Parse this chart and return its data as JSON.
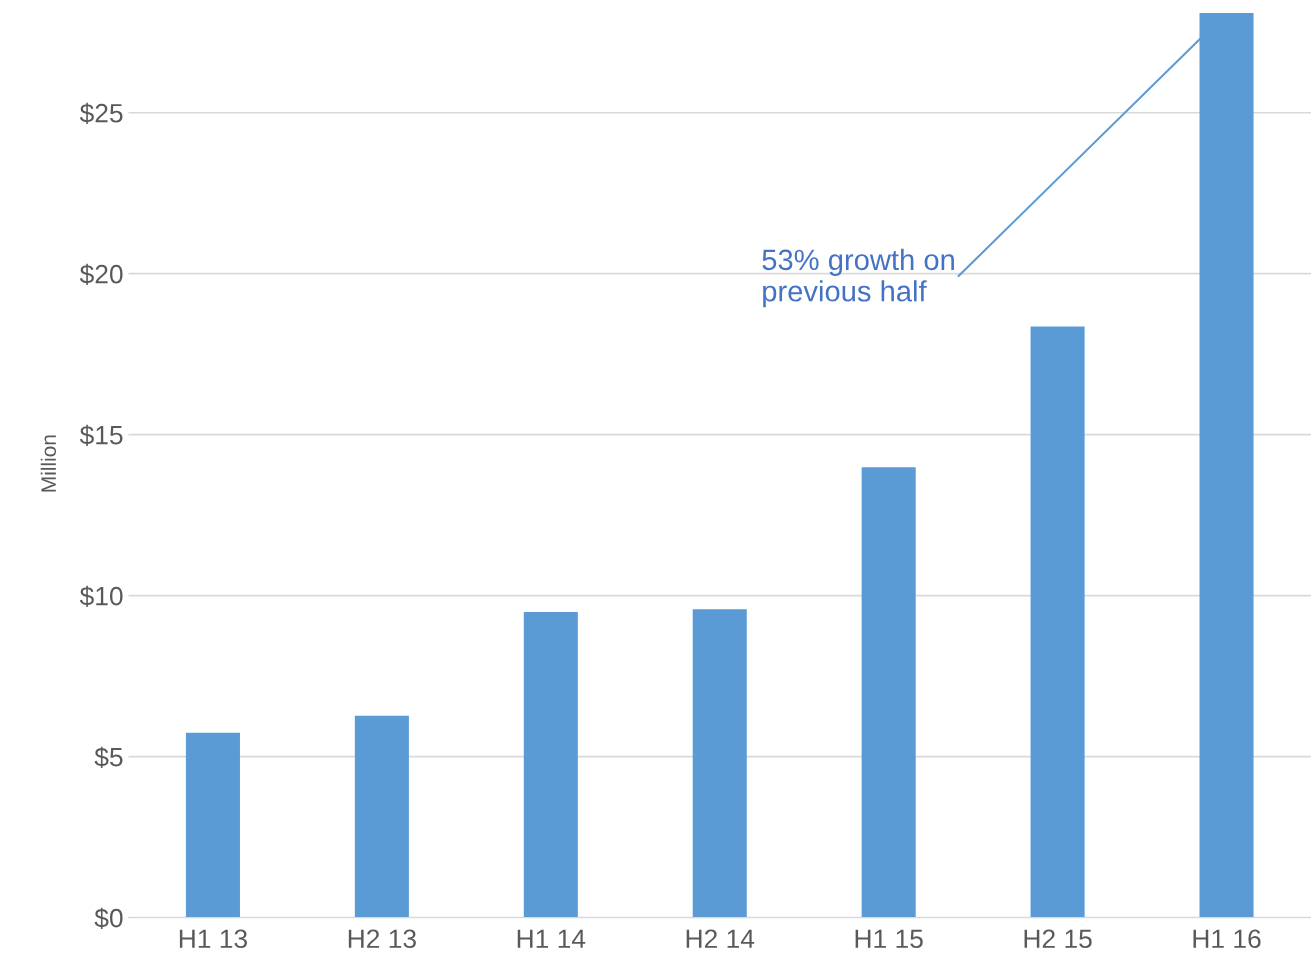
{
  "chart_data": {
    "type": "bar",
    "ylabel": "Million",
    "categories": [
      "H1 13",
      "H2 13",
      "H1 14",
      "H2 14",
      "H1 15",
      "H2 15",
      "H1 16"
    ],
    "values": [
      5.74,
      6.27,
      9.49,
      9.58,
      13.99,
      18.36,
      28.1
    ],
    "color": "#5b9bd5",
    "ylim": [
      0,
      28.2
    ],
    "yticks": [
      {
        "value": 0,
        "label": "$0"
      },
      {
        "value": 5,
        "label": "$5"
      },
      {
        "value": 10,
        "label": "$10"
      },
      {
        "value": 15,
        "label": "$15"
      },
      {
        "value": 20,
        "label": "$20"
      },
      {
        "value": 25,
        "label": "$25"
      }
    ],
    "grid": "y",
    "annotations": [
      {
        "text": "53% growth on\nprevious half",
        "x": "H1 16",
        "y": 28.1
      }
    ]
  }
}
